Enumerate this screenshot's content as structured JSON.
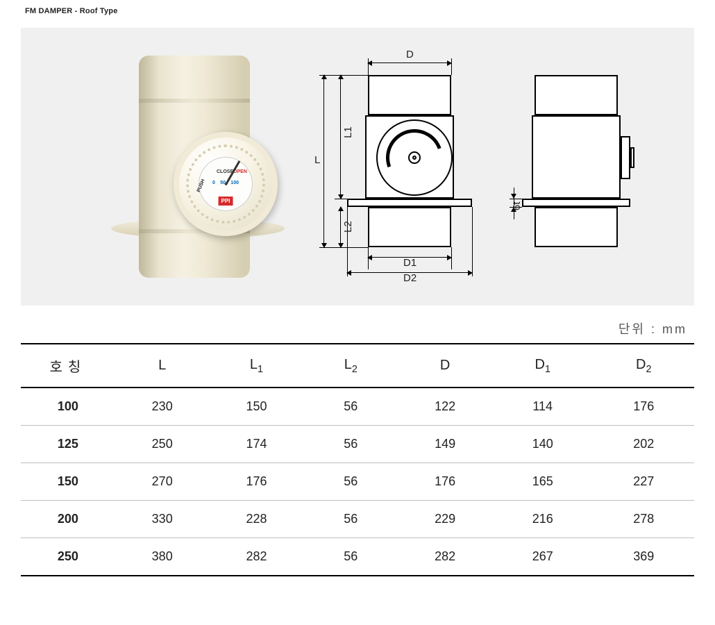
{
  "title": "FM DAMPER - Roof Type",
  "unit_label": "단위 : mm",
  "diagram": {
    "labels": {
      "L": "L",
      "L1": "L1",
      "L2": "L2",
      "D": "D",
      "D1": "D1",
      "D2": "D2",
      "thickness": "6t"
    },
    "dial_text": {
      "close": "CLOSE",
      "push": "PUSH",
      "open": "OPEN",
      "t0": "0",
      "t50": "50",
      "t100": "100"
    },
    "brand": "PPI",
    "colors": {
      "figure_bg": "#f0f0f0",
      "pipe_light": "#f5f1e2",
      "pipe_dark": "#bfb79b",
      "accent_red": "#d62b2b",
      "line": "#000000"
    }
  },
  "table": {
    "columns": [
      "호칭",
      "L",
      "L1",
      "L2",
      "D",
      "D1",
      "D2"
    ],
    "column_has_sub": [
      false,
      false,
      true,
      true,
      false,
      true,
      true
    ],
    "col_widths_pct": [
      14,
      14,
      14,
      14,
      14,
      15,
      15
    ],
    "rows": [
      [
        "100",
        "230",
        "150",
        "56",
        "122",
        "114",
        "176"
      ],
      [
        "125",
        "250",
        "174",
        "56",
        "149",
        "140",
        "202"
      ],
      [
        "150",
        "270",
        "176",
        "56",
        "176",
        "165",
        "227"
      ],
      [
        "200",
        "330",
        "228",
        "56",
        "229",
        "216",
        "278"
      ],
      [
        "250",
        "380",
        "282",
        "56",
        "282",
        "267",
        "369"
      ]
    ],
    "header_fontsize_pt": 15,
    "body_fontsize_pt": 14,
    "border_color": "#bfbfbf",
    "strong_border_color": "#000000"
  }
}
